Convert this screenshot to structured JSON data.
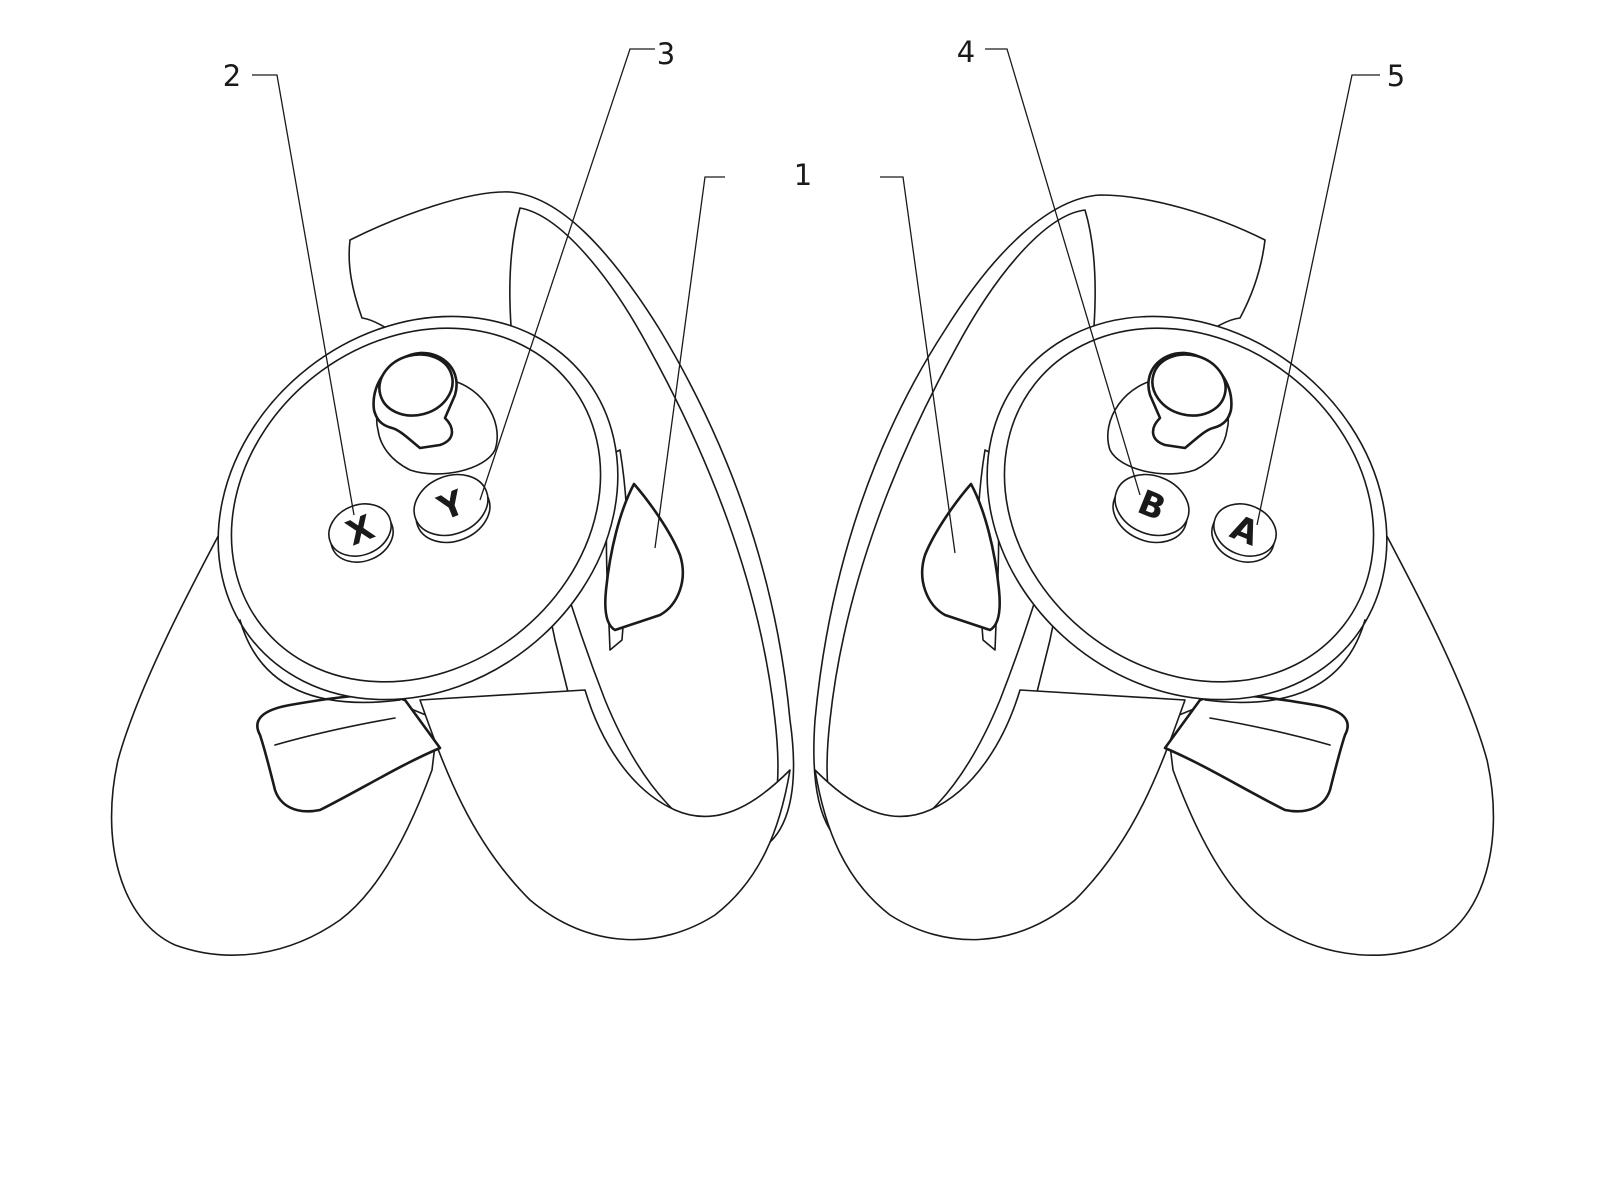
{
  "callouts": [
    {
      "id": "1",
      "label": "1"
    },
    {
      "id": "2",
      "label": "2"
    },
    {
      "id": "3",
      "label": "3"
    },
    {
      "id": "4",
      "label": "4"
    },
    {
      "id": "5",
      "label": "5"
    }
  ],
  "buttons": {
    "x": "X",
    "y": "Y",
    "b": "B",
    "a": "A"
  }
}
